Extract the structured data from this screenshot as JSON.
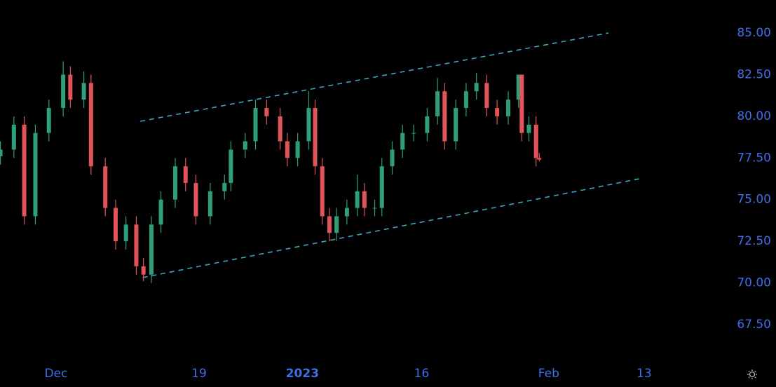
{
  "chart_data": {
    "type": "candlestick",
    "x": [
      -7,
      -5.3,
      -4,
      -2.6,
      -0.9,
      0.9,
      1.8,
      3.5,
      4.4,
      6.2,
      7.5,
      8.8,
      10.1,
      11,
      12,
      13.2,
      15,
      16.3,
      17.6,
      19.4,
      21.2,
      22,
      23.8,
      25.1,
      26.5,
      28.2,
      29.1,
      30.4,
      31.8,
      32.6,
      33.5,
      34.4,
      35.3,
      36.6,
      37.9,
      38.8,
      40.1,
      41,
      42.3,
      43.6,
      45,
      46.7,
      48,
      48.9,
      50.3,
      51.6,
      52.9,
      54.2,
      55.5,
      56.9,
      58.2,
      58.6,
      59.5,
      60.4,
      60.8
    ],
    "open": [
      77.6,
      78.0,
      79.5,
      74.0,
      79.0,
      80.5,
      82.5,
      81.0,
      82.0,
      77.0,
      74.5,
      72.5,
      73.5,
      71.0,
      70.5,
      73.5,
      75.0,
      77.0,
      76.0,
      74.0,
      75.5,
      76.0,
      78.0,
      78.5,
      80.5,
      80.0,
      78.5,
      77.5,
      78.5,
      80.5,
      77.0,
      74.0,
      73.0,
      74.0,
      74.5,
      75.5,
      74.5,
      74.5,
      77.0,
      78.0,
      79.0,
      79.0,
      80.0,
      81.5,
      78.5,
      80.5,
      81.5,
      82.0,
      80.5,
      80.0,
      81.0,
      82.5,
      79.0,
      79.5,
      77.5
    ],
    "high": [
      78.5,
      80.0,
      80.0,
      79.5,
      81.0,
      83.3,
      83.0,
      82.7,
      82.5,
      77.5,
      75.0,
      74.0,
      74.0,
      71.5,
      74.0,
      75.5,
      77.5,
      77.5,
      76.5,
      76.0,
      76.5,
      78.5,
      79.0,
      81.0,
      81.0,
      80.5,
      79.0,
      79.0,
      81.5,
      81.0,
      77.5,
      74.5,
      74.5,
      75.0,
      76.5,
      76.0,
      75.0,
      77.5,
      78.5,
      79.5,
      79.5,
      80.5,
      82.3,
      82.0,
      81.0,
      82.0,
      82.6,
      82.5,
      81.0,
      81.5,
      82.5,
      82.5,
      80.0,
      80.0,
      77.8
    ],
    "low": [
      77.1,
      77.5,
      73.5,
      73.5,
      78.5,
      80.0,
      80.5,
      80.5,
      76.5,
      74.0,
      72.0,
      72.0,
      70.5,
      70.1,
      70.0,
      73.0,
      74.5,
      75.5,
      73.5,
      73.5,
      75.0,
      75.5,
      77.5,
      78.0,
      79.5,
      78.0,
      77.0,
      77.0,
      78.0,
      76.5,
      73.5,
      72.5,
      72.5,
      73.5,
      74.0,
      74.0,
      74.0,
      74.0,
      76.5,
      77.5,
      78.5,
      78.5,
      79.5,
      78.0,
      78.0,
      80.0,
      81.0,
      80.0,
      79.5,
      79.5,
      80.5,
      78.5,
      78.5,
      77.0,
      77.3
    ],
    "close": [
      78.0,
      79.5,
      74.0,
      79.0,
      80.5,
      82.5,
      81.0,
      82.0,
      77.0,
      74.5,
      72.5,
      73.5,
      71.0,
      70.5,
      73.5,
      75.0,
      77.0,
      76.0,
      74.0,
      75.5,
      76.0,
      78.0,
      78.5,
      80.5,
      80.0,
      78.5,
      77.5,
      78.5,
      80.5,
      77.0,
      74.0,
      73.0,
      74.0,
      74.5,
      75.5,
      74.5,
      74.5,
      77.0,
      78.0,
      79.0,
      79.0,
      80.0,
      81.5,
      78.5,
      80.5,
      81.5,
      82.0,
      80.5,
      80.0,
      81.0,
      82.5,
      79.0,
      79.5,
      77.5,
      77.4
    ],
    "up_color": "#2f9e7c",
    "down_color": "#e0545a",
    "trend_lines": [
      {
        "x": [
          10.6,
          69.5
        ],
        "y": [
          79.7,
          85.0
        ]
      },
      {
        "x": [
          10.9,
          73.8
        ],
        "y": [
          70.32,
          76.29
        ]
      }
    ],
    "trend_color": "#3aa6c0",
    "xlim": [
      -7.05,
      83.8
    ],
    "xticks": [
      {
        "value": 0,
        "label": "Dec"
      },
      {
        "value": 18,
        "label": "19"
      },
      {
        "value": 31,
        "label": "2023"
      },
      {
        "value": 46,
        "label": "16"
      },
      {
        "value": 62,
        "label": "Feb"
      },
      {
        "value": 74,
        "label": "13"
      }
    ],
    "ylim": [
      65.52,
      86.98
    ],
    "yticks": [
      {
        "value": 67.5,
        "label": "67.50"
      },
      {
        "value": 70,
        "label": "70.00"
      },
      {
        "value": 72.5,
        "label": "72.50"
      },
      {
        "value": 75,
        "label": "75.00"
      },
      {
        "value": 77.5,
        "label": "77.50"
      },
      {
        "value": 80,
        "label": "80.00"
      },
      {
        "value": 82.5,
        "label": "82.50"
      },
      {
        "value": 85,
        "label": "85.00"
      }
    ]
  }
}
